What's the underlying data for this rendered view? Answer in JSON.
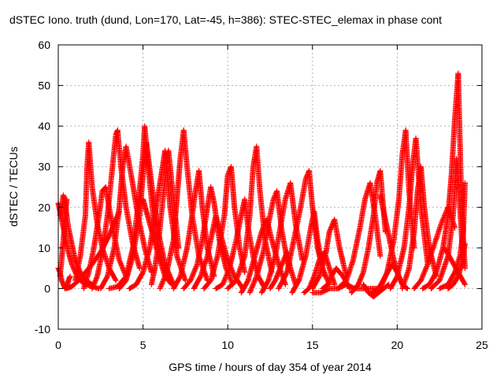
{
  "chart_data": {
    "type": "scatter",
    "title": "dSTEC Iono. truth (dund, Lon=170, Lat=-45, h=386): STEC-STEC_elemax in phase cont",
    "xlabel": "GPS time / hours of day 354 of year 2014",
    "ylabel": "dSTEC  / TECUs",
    "xlim": [
      0,
      25
    ],
    "ylim": [
      -10,
      60
    ],
    "xticks": [
      0,
      5,
      10,
      15,
      20,
      25
    ],
    "yticks": [
      -10,
      0,
      10,
      20,
      30,
      40,
      50,
      60
    ],
    "grid": true,
    "marker": "+",
    "marker_color": "#ff0000",
    "series": [
      {
        "x": [
          0.0,
          0.1,
          0.2,
          0.3,
          0.4,
          0.5,
          0.6,
          0.8,
          1.0,
          1.3,
          1.6,
          2.0,
          2.4
        ],
        "values": [
          21,
          19,
          17,
          15,
          13,
          11,
          9,
          6,
          4,
          2,
          1,
          0.5,
          0
        ]
      },
      {
        "x": [
          0.0,
          0.1,
          0.2,
          0.3,
          0.4,
          0.5,
          0.6,
          0.7
        ],
        "values": [
          5,
          4,
          2,
          1,
          0,
          0.5,
          2,
          3
        ]
      },
      {
        "x": [
          0.1,
          0.2,
          0.3,
          0.4,
          0.5,
          0.6,
          0.8,
          1.0,
          1.3,
          1.6,
          2.0
        ],
        "values": [
          18,
          20,
          23,
          21,
          18,
          15,
          11,
          7,
          4,
          2,
          1
        ]
      },
      {
        "x": [
          0.1,
          0.2,
          0.3,
          0.4,
          0.5
        ],
        "values": [
          3,
          7,
          12,
          17,
          22
        ]
      },
      {
        "x": [
          0.5,
          0.8,
          1.2,
          1.6,
          2.0,
          2.5,
          3.0,
          3.3,
          3.6
        ],
        "values": [
          0,
          0.5,
          2,
          4,
          6,
          9,
          13,
          16,
          19
        ]
      },
      {
        "x": [
          1.0,
          1.3,
          1.6,
          1.7,
          1.8,
          2.0,
          2.3,
          2.6,
          3.0,
          3.4
        ],
        "values": [
          2,
          8,
          18,
          30,
          36,
          25,
          16,
          10,
          5,
          2
        ]
      },
      {
        "x": [
          1.5,
          1.8,
          2.1,
          2.4,
          2.6,
          2.8,
          3.0,
          3.3,
          3.6,
          4.0
        ],
        "values": [
          0,
          4,
          10,
          18,
          24,
          25,
          20,
          13,
          7,
          3
        ]
      },
      {
        "x": [
          2.0,
          2.3,
          2.6,
          2.9,
          3.2,
          3.4,
          3.5,
          3.7,
          4.0,
          4.4,
          4.8
        ],
        "values": [
          0,
          3,
          9,
          18,
          30,
          38,
          39,
          30,
          20,
          11,
          5
        ]
      },
      {
        "x": [
          2.5,
          2.9,
          3.3,
          3.6,
          3.8,
          4.0,
          4.3,
          4.7,
          5.1,
          5.5
        ],
        "values": [
          0,
          3,
          10,
          20,
          30,
          35,
          28,
          18,
          10,
          4
        ]
      },
      {
        "x": [
          3.0,
          3.5,
          4.0,
          4.4,
          4.7,
          5.0,
          5.1,
          5.3,
          5.6,
          6.0,
          6.5
        ],
        "values": [
          0,
          0.5,
          3,
          10,
          20,
          33,
          40,
          30,
          18,
          8,
          2
        ]
      },
      {
        "x": [
          3.6,
          4.0,
          4.4,
          4.8,
          5.0,
          5.2,
          5.5,
          5.9,
          6.3,
          6.8
        ],
        "values": [
          0,
          2,
          8,
          18,
          28,
          36,
          26,
          14,
          6,
          1
        ]
      },
      {
        "x": [
          4.2,
          4.6,
          5.0,
          5.4,
          5.7,
          6.0,
          6.3,
          6.6,
          7.0,
          7.5
        ],
        "values": [
          0,
          1,
          4,
          10,
          18,
          26,
          34,
          20,
          8,
          2
        ]
      },
      {
        "x": [
          5.0,
          5.2,
          5.4,
          5.6,
          5.8,
          6.0,
          6.3,
          6.7
        ],
        "values": [
          22,
          19,
          16,
          13,
          10,
          7,
          3,
          1
        ]
      },
      {
        "x": [
          5.5,
          5.7,
          5.9,
          6.1,
          6.3,
          6.5,
          6.8,
          7.1
        ],
        "values": [
          1,
          5,
          11,
          19,
          27,
          34,
          22,
          10
        ]
      },
      {
        "x": [
          6.0,
          6.4,
          6.8,
          7.0,
          7.2,
          7.4,
          7.6,
          7.9,
          8.3,
          8.8
        ],
        "values": [
          0,
          4,
          12,
          22,
          32,
          39,
          30,
          18,
          8,
          2
        ]
      },
      {
        "x": [
          6.8,
          7.2,
          7.6,
          7.9,
          8.1,
          8.3,
          8.5,
          8.8,
          9.2
        ],
        "values": [
          0,
          3,
          10,
          18,
          24,
          29,
          20,
          10,
          3
        ]
      },
      {
        "x": [
          7.4,
          7.8,
          8.2,
          8.5,
          8.8,
          9.0,
          9.2,
          9.5,
          9.9,
          10.3
        ],
        "values": [
          0,
          2,
          6,
          12,
          20,
          25,
          21,
          12,
          5,
          1
        ]
      },
      {
        "x": [
          8.0,
          8.4,
          8.8,
          9.1,
          9.3,
          9.6,
          10.0,
          10.4,
          10.9
        ],
        "values": [
          0,
          3,
          8,
          14,
          18,
          13,
          7,
          3,
          0
        ]
      },
      {
        "x": [
          8.6,
          9.0,
          9.4,
          9.8,
          10.0,
          10.2,
          10.4,
          10.7,
          11.0
        ],
        "values": [
          0,
          2,
          8,
          18,
          28,
          30,
          20,
          10,
          4
        ]
      },
      {
        "x": [
          9.3,
          9.7,
          10.1,
          10.5,
          10.8,
          11.0,
          11.2,
          11.5,
          11.8,
          12.2
        ],
        "values": [
          0,
          1,
          5,
          12,
          18,
          22,
          15,
          8,
          3,
          0
        ]
      },
      {
        "x": [
          10.0,
          10.5,
          11.0,
          11.3,
          11.5,
          11.7,
          11.9,
          12.2,
          12.6
        ],
        "values": [
          0,
          2,
          8,
          18,
          30,
          35,
          24,
          12,
          4
        ]
      },
      {
        "x": [
          10.8,
          11.2,
          11.6,
          12.0,
          12.3,
          12.6,
          13.0,
          13.4
        ],
        "values": [
          -1,
          2,
          8,
          14,
          17,
          12,
          6,
          1
        ]
      },
      {
        "x": [
          11.3,
          11.7,
          12.1,
          12.4,
          12.7,
          12.9,
          13.2,
          13.6
        ],
        "values": [
          -1,
          3,
          9,
          16,
          22,
          24,
          14,
          5
        ]
      },
      {
        "x": [
          12.0,
          12.4,
          12.8,
          13.1,
          13.4,
          13.7,
          14.0,
          14.4
        ],
        "values": [
          -1,
          2,
          8,
          15,
          22,
          26,
          16,
          7
        ]
      },
      {
        "x": [
          12.5,
          12.8,
          13.1,
          13.3,
          13.5,
          13.7,
          14.0
        ],
        "values": [
          0,
          2,
          5,
          7,
          9,
          5,
          1
        ]
      },
      {
        "x": [
          13.0,
          13.5,
          13.9,
          14.3,
          14.6,
          14.8,
          15.0,
          15.3,
          15.7
        ],
        "values": [
          0,
          4,
          12,
          20,
          27,
          29,
          20,
          10,
          3
        ]
      },
      {
        "x": [
          13.8,
          14.2,
          14.6,
          14.9,
          15.1,
          15.3,
          15.6,
          16.0
        ],
        "values": [
          -1,
          2,
          8,
          15,
          19,
          12,
          5,
          1
        ]
      },
      {
        "x": [
          14.5,
          14.8,
          15.1,
          15.4,
          15.7,
          16.0,
          16.3
        ],
        "values": [
          -1,
          0,
          3,
          7,
          9,
          5,
          1
        ]
      },
      {
        "x": [
          15.0,
          15.4,
          15.8,
          16.0,
          16.3,
          16.6,
          17.0
        ],
        "values": [
          0,
          3,
          9,
          14,
          17,
          10,
          3
        ]
      },
      {
        "x": [
          15.6,
          15.9,
          16.1,
          16.4,
          16.8,
          17.2
        ],
        "values": [
          0,
          1,
          3,
          5,
          3,
          0
        ]
      },
      {
        "x": [
          15.0,
          15.5,
          16.0,
          16.5,
          17.0,
          17.5,
          18.0,
          18.5,
          19.0
        ],
        "values": [
          -1,
          -1,
          0,
          0,
          1,
          0,
          0,
          0,
          0
        ]
      },
      {
        "x": [
          16.5,
          17.0,
          17.4,
          17.8,
          18.1,
          18.4,
          18.7,
          19.0
        ],
        "values": [
          0,
          2,
          7,
          15,
          22,
          26,
          18,
          8
        ]
      },
      {
        "x": [
          17.3,
          17.7,
          18.0,
          18.3,
          18.6,
          18.8,
          19.0,
          19.3
        ],
        "values": [
          -1,
          1,
          4,
          10,
          18,
          26,
          29,
          14
        ]
      },
      {
        "x": [
          18.0,
          18.3,
          18.6,
          18.9,
          19.2,
          19.5
        ],
        "values": [
          1,
          -1,
          -2,
          -1,
          0,
          1
        ]
      },
      {
        "x": [
          18.5,
          18.9,
          19.3,
          19.7,
          20.0,
          20.3
        ],
        "values": [
          -1,
          0,
          3,
          6,
          4,
          1
        ]
      },
      {
        "x": [
          19.0,
          19.2,
          19.4,
          19.6,
          19.8,
          20.0,
          20.3,
          20.6
        ],
        "values": [
          23,
          19,
          15,
          11,
          7,
          4,
          1,
          0
        ]
      },
      {
        "x": [
          19.0,
          19.4,
          19.8,
          20.1,
          20.3,
          20.5,
          20.7,
          21.0
        ],
        "values": [
          0,
          4,
          12,
          22,
          33,
          39,
          24,
          10
        ]
      },
      {
        "x": [
          19.6,
          20.0,
          20.4,
          20.7,
          20.9,
          21.1,
          21.4,
          21.8
        ],
        "values": [
          0,
          3,
          10,
          20,
          30,
          37,
          20,
          6
        ]
      },
      {
        "x": [
          20.3,
          20.7,
          21.0,
          21.2,
          21.4,
          21.6,
          21.9,
          22.3
        ],
        "values": [
          0,
          5,
          14,
          24,
          30,
          20,
          10,
          3
        ]
      },
      {
        "x": [
          21.0,
          21.4,
          21.8,
          22.2,
          22.6,
          23.0,
          23.4
        ],
        "values": [
          0,
          2,
          6,
          11,
          16,
          20,
          15
        ]
      },
      {
        "x": [
          21.5,
          21.9,
          22.3,
          22.7,
          23.0,
          23.2,
          23.4,
          23.6,
          23.8,
          24.0
        ],
        "values": [
          0,
          1,
          4,
          10,
          18,
          28,
          42,
          53,
          20,
          5
        ]
      },
      {
        "x": [
          22.0,
          22.5,
          23.0,
          23.3,
          23.5,
          23.7,
          23.9
        ],
        "values": [
          0,
          2,
          8,
          18,
          32,
          20,
          6
        ]
      },
      {
        "x": [
          22.5,
          23.0,
          23.4,
          23.7,
          23.9,
          24.0
        ],
        "values": [
          0,
          1,
          4,
          8,
          14,
          26
        ]
      },
      {
        "x": [
          23.0,
          23.3,
          23.6,
          23.8,
          24.0
        ],
        "values": [
          0,
          1,
          3,
          6,
          11
        ]
      },
      {
        "x": [
          22.8,
          23.2,
          23.6,
          24.0
        ],
        "values": [
          10,
          7,
          4,
          1
        ]
      }
    ]
  }
}
